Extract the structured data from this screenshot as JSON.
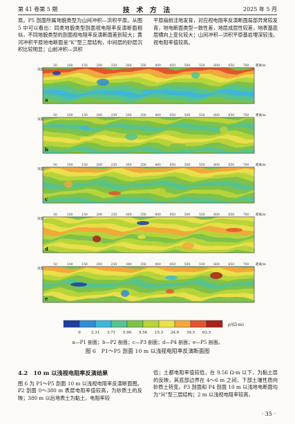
{
  "header": {
    "left": "第 41 卷第 5 期",
    "center": "技 术 方 法",
    "right": "2025 年 5 月"
  },
  "top_left_text": "原。P5 剖面所属地貌类型为山间冲积—洪积平原。从图 5 中可以看出：同类地貌类型剖面视电阻率反演断面相似，不同地貌类型的剖面视电阻率反演断面差别较大；黄河冲积平原地电断面呈“K”型三层结构，中间层的砂层沉积比较明显；山前冲积—洪积",
  "top_right_text": "平原扇前洼地发育，对应视电阻率反演断面局部异常较发育，地电断面类型一致性差，地层成层性较差，地表基底层横向上变化较大；山间冲积—洪积平原基岩埋深较浅，视电阻率值较高。",
  "figure": {
    "panel_labels": [
      "a",
      "b",
      "c",
      "d",
      "e"
    ],
    "depth_label": "深度/m",
    "distance_label": "距离/m",
    "scale_ticks": [
      [
        "50",
        "100",
        "150",
        "200",
        "250",
        "300",
        "350",
        "400",
        "450",
        "500",
        "550",
        "600",
        "650",
        "700"
      ],
      [
        "50",
        "100",
        "150",
        "200",
        "250",
        "300",
        "350",
        "400",
        "450",
        "500",
        "550",
        "600",
        "650",
        "700"
      ],
      [
        "50",
        "100",
        "150",
        "200",
        "250",
        "300",
        "350",
        "400",
        "450",
        "500",
        "550",
        "600",
        "650",
        "700"
      ],
      [
        "50",
        "100",
        "150",
        "200",
        "250",
        "300",
        "350",
        "400",
        "450",
        "500",
        "550",
        "600",
        "650",
        "700"
      ],
      [
        "50",
        "100",
        "150",
        "200",
        "250",
        "300",
        "350",
        "400",
        "450",
        "500",
        "550",
        "600",
        "650",
        "700"
      ]
    ],
    "colorbar_values": [
      "0",
      "2.31",
      "3.71",
      "5.96",
      "9.56",
      "15.3",
      "24.6",
      "39.5",
      "63.5"
    ],
    "colorbar_colors": [
      "#1d3fa2",
      "#2f8dd6",
      "#3fb7d9",
      "#57c38f",
      "#7ec24a",
      "#b7d53a",
      "#e9e04a",
      "#f3a83a",
      "#e2552f",
      "#a8231b"
    ],
    "colorbar_unit": "ρ/(Ω·m)",
    "legend_line": "a—P1 剖面；b—P2 剖面；c—P3 剖面；d—P4 剖面；e—P5 剖面。",
    "caption": "图 6　P1～P5 剖面 10 m 以浅视电阻率反演断面图"
  },
  "section_title": "4.2　10 m 以浅视电阻率反演结果",
  "bottom_left_text": "图 6 为 P1～P5 剖面 10 m 以浅视电阻率反演断面图。P2 剖面 0～380 m 表层电阻率值较高，为砂质土的反映；380 m 以后地表土为黏土，电阻率较",
  "bottom_right_text": "低；土都电阻率值较低，在 9.56 Ω·m 以下，为黏土层的反映，其底部边界在 4～6 m 之间，下部土壤性质向砂质土转变。P3 剖面和 P4 剖面 10 m 以浅地电断面均为“H”型三层结构；2 m 以浅视电阻率较高，",
  "page_number": "· 35 ·"
}
